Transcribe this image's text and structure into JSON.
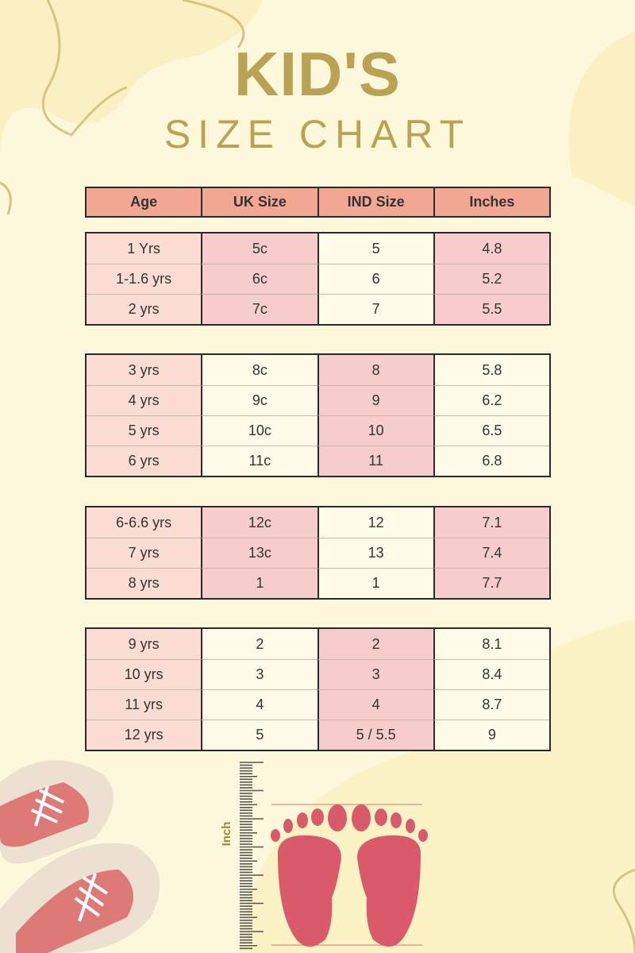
{
  "title": {
    "line1": "KID'S",
    "line2": "SIZE  CHART"
  },
  "table": {
    "headers": [
      "Age",
      "UK Size",
      "IND Size",
      "Inches"
    ],
    "groups": [
      {
        "rows": [
          [
            "1 Yrs",
            "5c",
            "5",
            "4.8"
          ],
          [
            "1-1.6 yrs",
            "6c",
            "6",
            "5.2"
          ],
          [
            "2 yrs",
            "7c",
            "7",
            "5.5"
          ]
        ]
      },
      {
        "rows": [
          [
            "3 yrs",
            "8c",
            "8",
            "5.8"
          ],
          [
            "4 yrs",
            "9c",
            "9",
            "6.2"
          ],
          [
            "5 yrs",
            "10c",
            "10",
            "6.5"
          ],
          [
            "6 yrs",
            "11c",
            "11",
            "6.8"
          ]
        ]
      },
      {
        "rows": [
          [
            "6-6.6 yrs",
            "12c",
            "12",
            "7.1"
          ],
          [
            "7 yrs",
            "13c",
            "13",
            "7.4"
          ],
          [
            "8 yrs",
            "1",
            "1",
            "7.7"
          ]
        ]
      },
      {
        "rows": [
          [
            "9 yrs",
            "2",
            "2",
            "8.1"
          ],
          [
            "10 yrs",
            "3",
            "3",
            "8.4"
          ],
          [
            "11 yrs",
            "4",
            "4",
            "8.7"
          ],
          [
            "12 yrs",
            "5",
            "5 / 5.5",
            "9"
          ]
        ]
      }
    ]
  },
  "illustration": {
    "ruler_label": "Inch",
    "icons": [
      "ruler-icon",
      "feet-icon",
      "sneakers-icon"
    ]
  },
  "colors": {
    "header": "#f2a795",
    "peach": "#fbdcd2",
    "pink": "#f7cccd",
    "cream": "#fffbe8",
    "gold": "#b9a253",
    "foot": "#d95a68"
  }
}
